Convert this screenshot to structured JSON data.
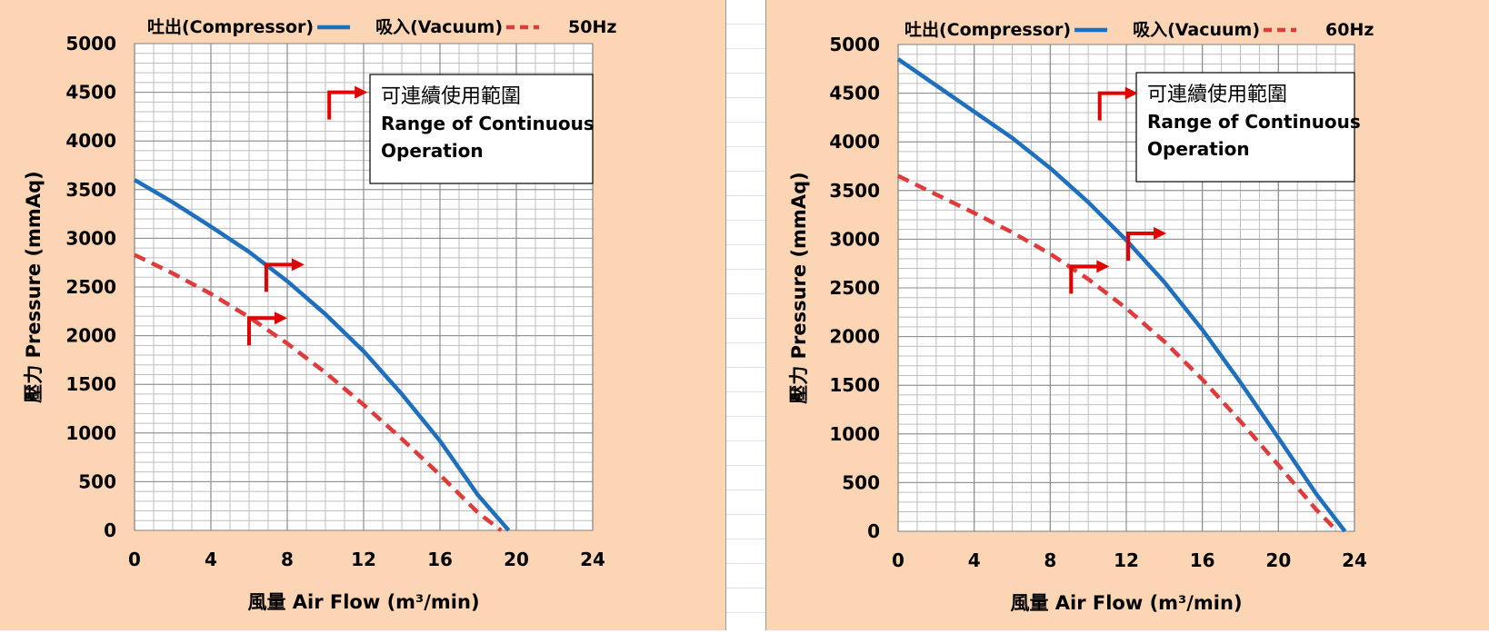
{
  "colors": {
    "panel_background": "#fcd5b4",
    "plot_background": "#ffffff",
    "grid_minor": "#bfbfbf",
    "grid_major": "#8c8c8c",
    "compressor_line": "#1f6fbf",
    "vacuum_line": "#e03a3a",
    "arrow": "#e00000"
  },
  "chart_data": [
    {
      "type": "line",
      "title": "50Hz",
      "xlabel": "風量 Air Flow (m³/min)",
      "ylabel": "壓力 Pressure (mmAq)",
      "xlim": [
        0,
        24
      ],
      "ylim": [
        0,
        5000
      ],
      "x_ticks": [
        "0",
        "4",
        "8",
        "12",
        "16",
        "20",
        "24"
      ],
      "y_ticks": [
        "0",
        "500",
        "1000",
        "1500",
        "2000",
        "2500",
        "3000",
        "3500",
        "4000",
        "4500",
        "5000"
      ],
      "grid": "on",
      "legend_position": "top",
      "legend": [
        {
          "label": "吐出(Compressor)",
          "style": "solid"
        },
        {
          "label": "吸入(Vacuum)",
          "style": "dashed"
        }
      ],
      "series": [
        {
          "name": "吐出(Compressor)",
          "style": "solid",
          "x": [
            0,
            2,
            4,
            6,
            8,
            10,
            12,
            14,
            16,
            18,
            19.6
          ],
          "y": [
            3600,
            3370,
            3120,
            2860,
            2560,
            2220,
            1840,
            1400,
            920,
            360,
            0
          ]
        },
        {
          "name": "吸入(Vacuum)",
          "style": "dashed",
          "x": [
            0,
            2,
            4,
            6,
            8,
            10,
            12,
            14,
            16,
            18,
            19.2
          ],
          "y": [
            2830,
            2640,
            2430,
            2190,
            1920,
            1620,
            1290,
            940,
            570,
            180,
            0
          ]
        }
      ],
      "annotation": {
        "line1": "可連續使用範圍",
        "line2": "Range of Continuous",
        "line3": "Operation",
        "markers": [
          {
            "x": 10.2,
            "y": 4500
          },
          {
            "x": 6.9,
            "y": 2730
          },
          {
            "x": 6.0,
            "y": 2180
          }
        ]
      }
    },
    {
      "type": "line",
      "title": "60Hz",
      "xlabel": "風量 Air Flow (m³/min)",
      "ylabel": "壓力 Pressure (mmAq)",
      "xlim": [
        0,
        24
      ],
      "ylim": [
        0,
        5000
      ],
      "x_ticks": [
        "0",
        "4",
        "8",
        "12",
        "16",
        "20",
        "24"
      ],
      "y_ticks": [
        "0",
        "500",
        "1000",
        "1500",
        "2000",
        "2500",
        "3000",
        "3500",
        "4000",
        "4500",
        "5000"
      ],
      "grid": "on",
      "legend_position": "top",
      "legend": [
        {
          "label": "吐出(Compressor)",
          "style": "solid"
        },
        {
          "label": "吸入(Vacuum)",
          "style": "dashed"
        }
      ],
      "series": [
        {
          "name": "吐出(Compressor)",
          "style": "solid",
          "x": [
            0,
            2,
            4,
            6,
            8,
            10,
            12,
            14,
            16,
            18,
            20,
            22,
            23.5
          ],
          "y": [
            4850,
            4580,
            4310,
            4040,
            3730,
            3380,
            2990,
            2560,
            2070,
            1530,
            960,
            380,
            0
          ]
        },
        {
          "name": "吸入(Vacuum)",
          "style": "dashed",
          "x": [
            0,
            2,
            4,
            6,
            8,
            10,
            12,
            14,
            16,
            18,
            20,
            22,
            23.1
          ],
          "y": [
            3650,
            3460,
            3270,
            3070,
            2850,
            2590,
            2290,
            1950,
            1560,
            1130,
            680,
            220,
            0
          ]
        }
      ],
      "annotation": {
        "line1": "可連續使用範圍",
        "line2": "Range of Continuous",
        "line3": "Operation",
        "markers": [
          {
            "x": 10.6,
            "y": 4500
          },
          {
            "x": 12.1,
            "y": 3060
          },
          {
            "x": 9.1,
            "y": 2720
          }
        ]
      }
    }
  ]
}
